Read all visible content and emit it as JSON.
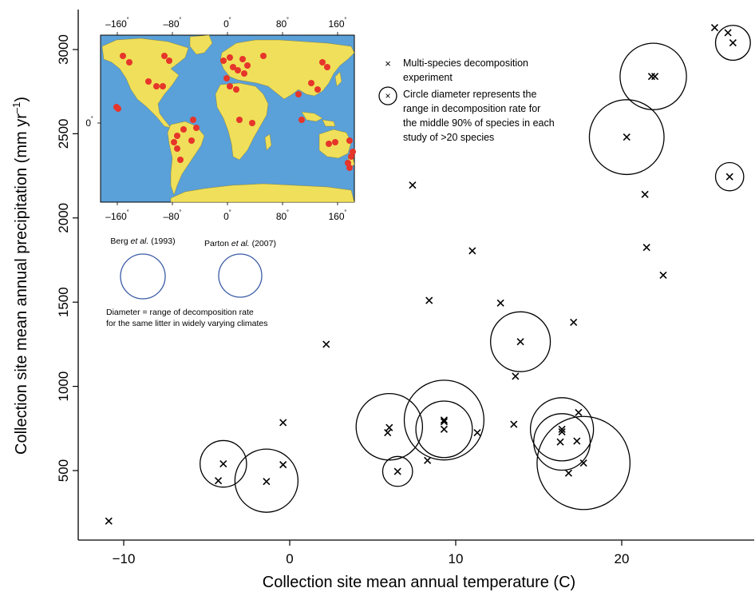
{
  "chart_data": {
    "type": "scatter",
    "xlabel": "Collection site mean annual temperature (C)",
    "ylabel_prefix": "Collection site mean annual precipitation (mm yr",
    "ylabel_sup": "–1",
    "ylabel_suffix": ")",
    "xlim": [
      -12.5,
      27.5
    ],
    "ylim": [
      120,
      3230
    ],
    "xticks": [
      -10,
      0,
      10,
      20
    ],
    "xtick_labels": [
      "−10",
      "0",
      "10",
      "20"
    ],
    "yticks": [
      500,
      1000,
      1500,
      2000,
      2500,
      3000
    ],
    "ytick_labels": [
      "500",
      "1000",
      "1500",
      "2000",
      "2500",
      "3000"
    ],
    "points": [
      {
        "x": -10.9,
        "y": 200
      },
      {
        "x": -4.3,
        "y": 440
      },
      {
        "x": -4.0,
        "y": 540
      },
      {
        "x": -1.4,
        "y": 435
      },
      {
        "x": -0.4,
        "y": 535
      },
      {
        "x": -0.4,
        "y": 785
      },
      {
        "x": 2.2,
        "y": 1250
      },
      {
        "x": 5.9,
        "y": 725
      },
      {
        "x": 6.0,
        "y": 755
      },
      {
        "x": 6.5,
        "y": 495
      },
      {
        "x": 7.4,
        "y": 2195
      },
      {
        "x": 8.3,
        "y": 560
      },
      {
        "x": 8.4,
        "y": 1510
      },
      {
        "x": 9.3,
        "y": 800
      },
      {
        "x": 9.3,
        "y": 790
      },
      {
        "x": 9.3,
        "y": 745
      },
      {
        "x": 11.0,
        "y": 1805
      },
      {
        "x": 11.3,
        "y": 725
      },
      {
        "x": 12.7,
        "y": 1495
      },
      {
        "x": 13.5,
        "y": 775
      },
      {
        "x": 13.6,
        "y": 1060
      },
      {
        "x": 13.9,
        "y": 1265
      },
      {
        "x": 16.3,
        "y": 670
      },
      {
        "x": 16.4,
        "y": 730
      },
      {
        "x": 16.4,
        "y": 745
      },
      {
        "x": 16.8,
        "y": 485
      },
      {
        "x": 17.1,
        "y": 1380
      },
      {
        "x": 17.3,
        "y": 675
      },
      {
        "x": 17.4,
        "y": 845
      },
      {
        "x": 17.7,
        "y": 545
      },
      {
        "x": 20.3,
        "y": 2480
      },
      {
        "x": 21.4,
        "y": 2140
      },
      {
        "x": 21.5,
        "y": 1825
      },
      {
        "x": 21.8,
        "y": 2840
      },
      {
        "x": 22.0,
        "y": 2840
      },
      {
        "x": 22.5,
        "y": 1660
      },
      {
        "x": 25.6,
        "y": 3130
      },
      {
        "x": 26.4,
        "y": 3100
      },
      {
        "x": 26.5,
        "y": 2245
      },
      {
        "x": 26.7,
        "y": 3040
      }
    ],
    "circles": [
      {
        "x": -4.0,
        "y": 540,
        "d": 2.8
      },
      {
        "x": -1.4,
        "y": 440,
        "d": 3.8
      },
      {
        "x": 6.0,
        "y": 760,
        "d": 4.0
      },
      {
        "x": 6.5,
        "y": 495,
        "d": 1.8
      },
      {
        "x": 9.3,
        "y": 800,
        "d": 4.8
      },
      {
        "x": 9.3,
        "y": 745,
        "d": 3.4
      },
      {
        "x": 13.9,
        "y": 1265,
        "d": 3.6
      },
      {
        "x": 16.4,
        "y": 745,
        "d": 3.8
      },
      {
        "x": 16.4,
        "y": 670,
        "d": 3.4
      },
      {
        "x": 17.7,
        "y": 545,
        "d": 5.6
      },
      {
        "x": 20.3,
        "y": 2480,
        "d": 4.5
      },
      {
        "x": 21.9,
        "y": 2840,
        "d": 4.0
      },
      {
        "x": 26.7,
        "y": 3040,
        "d": 2.1
      },
      {
        "x": 26.5,
        "y": 2245,
        "d": 1.7
      }
    ],
    "legend": {
      "cross_label_lines": [
        "Multi-species decomposition",
        "experiment"
      ],
      "circle_label_lines": [
        "Circle diameter represents the",
        "range in decomposition rate for",
        "the middle 90% of species in each",
        "study of >20 species"
      ]
    },
    "inset_map": {
      "lon_tick_labels": [
        "–160",
        "–80",
        "0",
        "80",
        "160"
      ],
      "lat_tick_label": "0",
      "degree": "˚"
    },
    "reference_circles": [
      {
        "author": "Berg",
        "etal": "et al.",
        "year": "(1993)",
        "color": "#3b5ba5"
      },
      {
        "author": "Parton",
        "etal": "et al.",
        "year": "(2007)",
        "color": "#3b5ba5"
      }
    ],
    "diameter_note_lines": [
      "Diameter  =  range of decomposition rate",
      "for the same litter in widely varying climates"
    ]
  },
  "colors": {
    "ocean": "#5aa0d9",
    "land": "#efdf5a",
    "site_dot": "#e6352b",
    "circle": "#000000",
    "reference_circle": "#3b5ba5"
  }
}
